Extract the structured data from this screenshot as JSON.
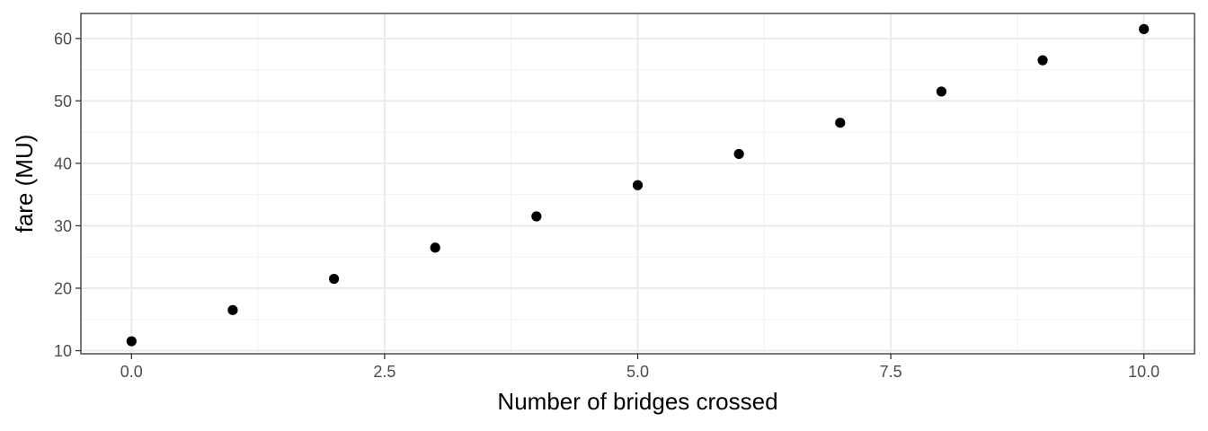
{
  "chart_data": {
    "type": "scatter",
    "title": "",
    "xlabel": "Number of bridges crossed",
    "ylabel": "fare (MU)",
    "xlim": [
      -0.5,
      10.5
    ],
    "ylim": [
      9.5,
      64
    ],
    "x_ticks": [
      0,
      2.5,
      5,
      7.5,
      10
    ],
    "x_tick_labels": [
      "0.0",
      "2.5",
      "5.0",
      "7.5",
      "10.0"
    ],
    "y_ticks": [
      10,
      20,
      30,
      40,
      50,
      60
    ],
    "y_tick_labels": [
      "10",
      "20",
      "30",
      "40",
      "50",
      "60"
    ],
    "grid": true,
    "legend": "none",
    "point_color": "#000000",
    "x": [
      0,
      1,
      2,
      3,
      4,
      5,
      6,
      7,
      8,
      9,
      10
    ],
    "y": [
      11.5,
      16.5,
      21.5,
      26.5,
      31.5,
      36.5,
      41.5,
      46.5,
      51.5,
      56.5,
      61.5
    ]
  }
}
